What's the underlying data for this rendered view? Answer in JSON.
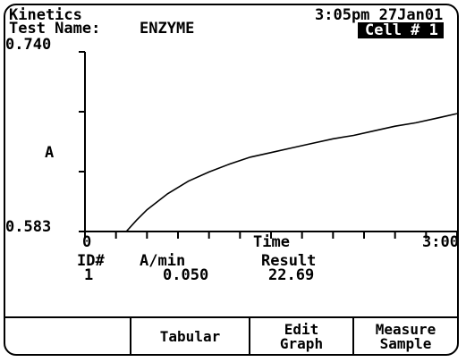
{
  "header": {
    "app_name": "Kinetics",
    "test_name_label": "Test Name:",
    "test_name": "ENZYME",
    "datetime": "3:05pm 27Jan01",
    "cell": "Cell # 1"
  },
  "axes": {
    "y_max_label": "0.740",
    "y_min_label": "0.583",
    "y_label": "A",
    "x_min_label": "0",
    "x_label": "Time",
    "x_max_label": "3:00"
  },
  "chart_data": {
    "type": "line",
    "xlabel": "Time",
    "ylabel": "A",
    "xlim": [
      0,
      180
    ],
    "ylim": [
      0.583,
      0.74
    ],
    "grid": false,
    "series": [
      {
        "x": [
          20,
          25,
          30,
          40,
          50,
          60,
          70,
          80,
          90,
          100,
          110,
          120,
          130,
          140,
          150,
          160,
          170,
          180
        ],
        "values": [
          0.583,
          0.593,
          0.602,
          0.616,
          0.627,
          0.635,
          0.642,
          0.648,
          0.652,
          0.656,
          0.66,
          0.664,
          0.667,
          0.671,
          0.675,
          0.678,
          0.682,
          0.686
        ]
      }
    ]
  },
  "results": {
    "headers": {
      "id": "ID#",
      "rate": "A/min",
      "result": "Result"
    },
    "row": {
      "id": "1",
      "rate": "0.050",
      "result": "22.69"
    }
  },
  "softkeys": [
    {
      "label": ""
    },
    {
      "label": "Tabular"
    },
    {
      "label": "Edit\nGraph"
    },
    {
      "label": "Measure\nSample"
    }
  ]
}
